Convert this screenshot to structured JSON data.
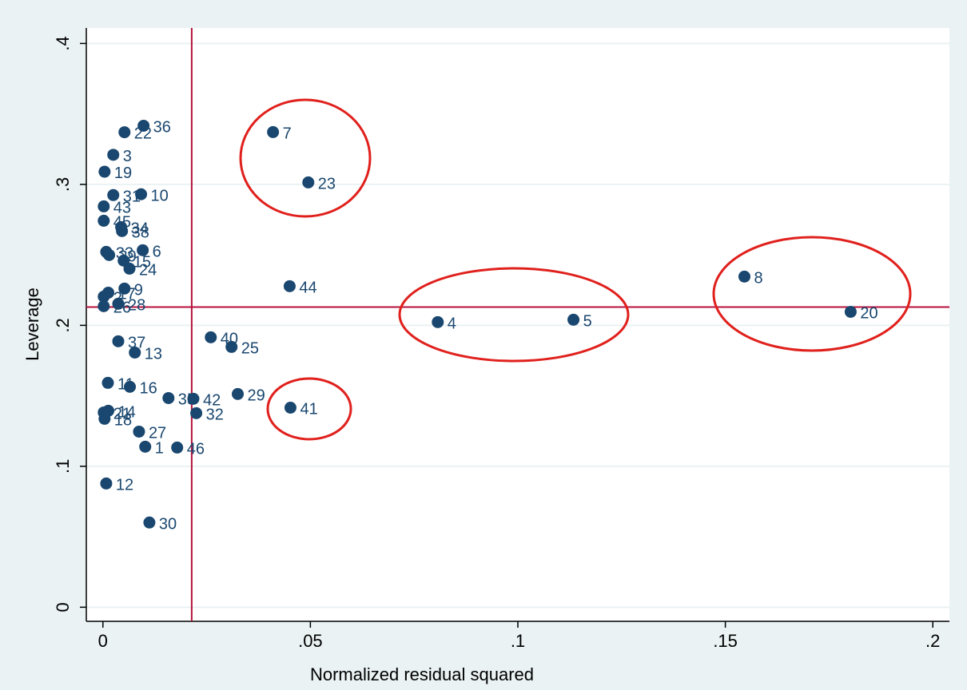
{
  "chart_data": {
    "type": "scatter",
    "x_label": "Normalized residual squared",
    "y_label": "Leverage",
    "xlim": [
      -0.004,
      0.204
    ],
    "ylim": [
      -0.01,
      0.411
    ],
    "xticks": [
      {
        "value": 0,
        "label": "0"
      },
      {
        "value": 0.05,
        "label": ".05"
      },
      {
        "value": 0.1,
        "label": ".1"
      },
      {
        "value": 0.15,
        "label": ".15"
      },
      {
        "value": 0.2,
        "label": ".2"
      }
    ],
    "yticks": [
      {
        "value": 0,
        "label": "0"
      },
      {
        "value": 0.1,
        "label": ".1"
      },
      {
        "value": 0.2,
        "label": ".2"
      },
      {
        "value": 0.3,
        "label": ".3"
      },
      {
        "value": 0.4,
        "label": ".4"
      }
    ],
    "grid": true,
    "color": "#1a476f",
    "ref_color": "#b5123c",
    "xline": 0.0214,
    "yline": 0.213,
    "point_labels": [
      "1",
      "2",
      "3",
      "4",
      "5",
      "6",
      "7",
      "8",
      "9",
      "10",
      "11",
      "12",
      "13",
      "14",
      "15",
      "16",
      "17",
      "18",
      "19",
      "20",
      "21",
      "22",
      "23",
      "24",
      "25",
      "26",
      "27",
      "28",
      "29",
      "30",
      "31",
      "32",
      "33",
      "34",
      "35",
      "36",
      "37",
      "38",
      "39",
      "40",
      "41",
      "42",
      "43",
      "44",
      "45",
      "46"
    ],
    "x": [
      0.0102,
      0.0002,
      0.0025,
      0.0807,
      0.1134,
      0.0096,
      0.041,
      0.1546,
      0.0052,
      0.0092,
      0.0012,
      0.0008,
      0.0077,
      0.0013,
      0.005,
      0.0065,
      0.0013,
      0.0004,
      0.0004,
      0.1802,
      0.0002,
      0.0052,
      0.0495,
      0.0064,
      0.031,
      0.0002,
      0.0087,
      0.0037,
      0.0325,
      0.0112,
      0.0025,
      0.0225,
      0.0008,
      0.0044,
      0.0158,
      0.0098,
      0.0037,
      0.0046,
      0.0015,
      0.026,
      0.0452,
      0.0218,
      0.0002,
      0.045,
      0.0002,
      0.0179
    ],
    "values": [
      0.1139,
      0.2204,
      0.321,
      0.2023,
      0.204,
      0.2533,
      0.3371,
      0.2346,
      0.2261,
      0.293,
      0.1592,
      0.0878,
      0.1807,
      0.1394,
      0.2459,
      0.1564,
      0.2232,
      0.1337,
      0.309,
      0.2096,
      0.1382,
      0.337,
      0.3014,
      0.2402,
      0.1847,
      0.2136,
      0.1246,
      0.2153,
      0.1513,
      0.0601,
      0.2924,
      0.1377,
      0.2521,
      0.2697,
      0.1484,
      0.3416,
      0.1887,
      0.2669,
      0.2499,
      0.1915,
      0.1416,
      0.1479,
      0.2844,
      0.2278,
      0.2742,
      0.1133
    ]
  }
}
